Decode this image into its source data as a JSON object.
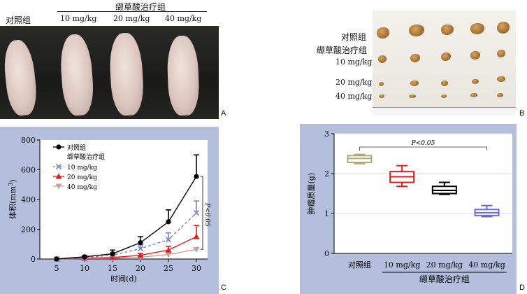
{
  "panel_a": {
    "treatment_header": "缬草酸治疗组",
    "control_label": "对照组",
    "doses": [
      "10 mg/kg",
      "20 mg/kg",
      "40 mg/kg"
    ],
    "letter": "A"
  },
  "panel_b": {
    "rows": [
      "对照组",
      "缬草酸治疗组",
      "10 mg/kg",
      "20 mg/kg",
      "40 mg/kg"
    ],
    "letter": "B"
  },
  "panel_c": {
    "letter": "C",
    "significance": "P<0.05",
    "chart_data": {
      "type": "line",
      "xlabel": "时间(d)",
      "ylabel": "体积(mm³)",
      "ylabel_main": "体积(mm",
      "ylabel_sup": "3",
      "ylabel_end": ")",
      "x": [
        5,
        10,
        15,
        20,
        25,
        30
      ],
      "xlim": [
        2,
        32
      ],
      "ylim": [
        0,
        800
      ],
      "yticks": [
        0,
        200,
        400,
        600,
        800
      ],
      "legend_placement": "top-left",
      "legend_group_label": "缬草酸治疗组",
      "series": [
        {
          "name": "对照组",
          "values": [
            0,
            15,
            35,
            110,
            250,
            555
          ],
          "err": [
            0,
            5,
            25,
            40,
            80,
            145
          ],
          "color": "#000000",
          "marker": "circle",
          "dash": false
        },
        {
          "name": "10 mg/kg",
          "values": [
            0,
            10,
            25,
            70,
            130,
            310
          ],
          "err": [
            0,
            4,
            12,
            25,
            45,
            80
          ],
          "color": "#7b84cc",
          "marker": "x",
          "dash": true
        },
        {
          "name": "20 mg/kg",
          "values": [
            0,
            5,
            10,
            25,
            60,
            150
          ],
          "err": [
            0,
            3,
            8,
            12,
            25,
            75
          ],
          "color": "#e02020",
          "marker": "triangle",
          "dash": false
        },
        {
          "name": "40 mg/kg",
          "values": [
            0,
            3,
            5,
            12,
            30,
            65
          ],
          "err": [
            0,
            2,
            4,
            6,
            10,
            10
          ],
          "color": "#c9a19a",
          "marker": "triangle-down",
          "dash": false
        }
      ]
    }
  },
  "panel_d": {
    "letter": "D",
    "significance": "P<0.05",
    "group_label": "缬草酸治疗组",
    "chart_data": {
      "type": "box",
      "ylabel": "肿瘤质量(g)",
      "ylim": [
        0,
        3
      ],
      "yticks": [
        0,
        1,
        2,
        3
      ],
      "categories": [
        "对照组",
        "10 mg/kg",
        "20 mg/kg",
        "40 mg/kg"
      ],
      "boxes": [
        {
          "min": 2.25,
          "q1": 2.28,
          "median": 2.38,
          "q3": 2.45,
          "max": 2.48,
          "color": "#b5a878"
        },
        {
          "min": 1.68,
          "q1": 1.78,
          "median": 1.92,
          "q3": 2.05,
          "max": 2.2,
          "color": "#e02020"
        },
        {
          "min": 1.48,
          "q1": 1.5,
          "median": 1.58,
          "q3": 1.68,
          "max": 1.78,
          "color": "#000000"
        },
        {
          "min": 0.92,
          "q1": 0.95,
          "median": 1.02,
          "q3": 1.1,
          "max": 1.2,
          "color": "#6a6ad8"
        }
      ]
    }
  }
}
